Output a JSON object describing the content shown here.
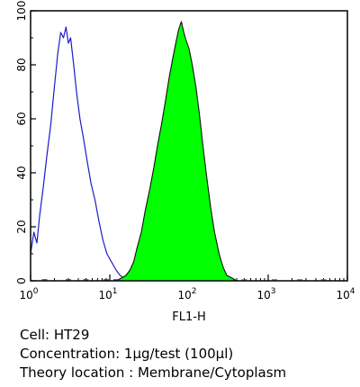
{
  "chart_data": {
    "type": "area",
    "title": "",
    "xlabel": "FL1-H",
    "ylabel": "",
    "xscale": "log",
    "xlim": [
      1,
      10000
    ],
    "ylim": [
      0,
      100
    ],
    "grid": false,
    "x_ticks": [
      {
        "base": "10",
        "exp": "0"
      },
      {
        "base": "10",
        "exp": "1"
      },
      {
        "base": "10",
        "exp": "2"
      },
      {
        "base": "10",
        "exp": "3"
      },
      {
        "base": "10",
        "exp": "4"
      }
    ],
    "y_ticks": [
      "0",
      "20",
      "40",
      "60",
      "80",
      "100"
    ],
    "series": [
      {
        "kind": "outline",
        "color": "#1c1cc8",
        "x": [
          1.0,
          1.1,
          1.2,
          1.3,
          1.45,
          1.6,
          1.8,
          2.0,
          2.2,
          2.4,
          2.6,
          2.8,
          3.0,
          3.2,
          3.5,
          3.8,
          4.2,
          4.7,
          5.2,
          5.8,
          6.5,
          7.3,
          8.2,
          9.2,
          10.5,
          12.0,
          13.5,
          15.0,
          17.0
        ],
        "y": [
          10,
          18,
          14,
          24,
          35,
          46,
          58,
          72,
          84,
          92,
          90,
          94,
          88,
          90,
          80,
          70,
          60,
          52,
          44,
          36,
          30,
          22,
          15,
          10,
          7,
          4,
          2,
          1,
          0
        ]
      },
      {
        "kind": "filled",
        "color": "#00ff00",
        "edge": "#111111",
        "x": [
          12.0,
          14.0,
          16.0,
          18.0,
          20.0,
          22.0,
          25.0,
          28.0,
          32.0,
          36.0,
          40.0,
          45.0,
          50.0,
          56.0,
          62.0,
          68.0,
          74.0,
          80.0,
          86.0,
          92.0,
          100.0,
          110.0,
          122.0,
          135.0,
          150.0,
          168.0,
          188.0,
          210.0,
          240.0,
          270.0,
          300.0,
          350.0,
          400.0
        ],
        "y": [
          0,
          1,
          2,
          4,
          7,
          12,
          18,
          26,
          34,
          42,
          50,
          58,
          66,
          75,
          82,
          88,
          93,
          96,
          92,
          89,
          86,
          80,
          72,
          62,
          50,
          38,
          27,
          18,
          10,
          5,
          2,
          1,
          0
        ]
      }
    ]
  },
  "caption": {
    "cell": "Cell: HT29",
    "concentration": "Concentration: 1μg/test (100μl)",
    "location": "Theory location : Membrane/Cytoplasm"
  }
}
